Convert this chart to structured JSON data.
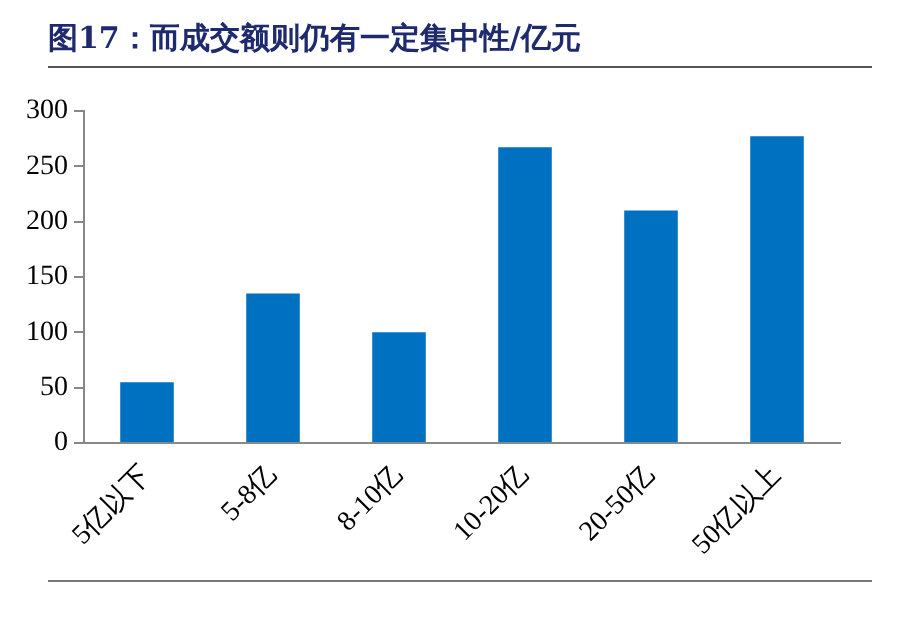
{
  "chart_data": {
    "type": "bar",
    "title": "图17：而成交额则仍有一定集中性/亿元",
    "categories": [
      "5亿以下",
      "5-8亿",
      "8-10亿",
      "10-20亿",
      "20-50亿",
      "50亿以上"
    ],
    "values": [
      55,
      135,
      100,
      267,
      210,
      277
    ],
    "color": "#0070c0",
    "ylim": [
      0,
      300
    ],
    "yticks": [
      0,
      50,
      100,
      150,
      200,
      250,
      300
    ],
    "grid": false
  }
}
